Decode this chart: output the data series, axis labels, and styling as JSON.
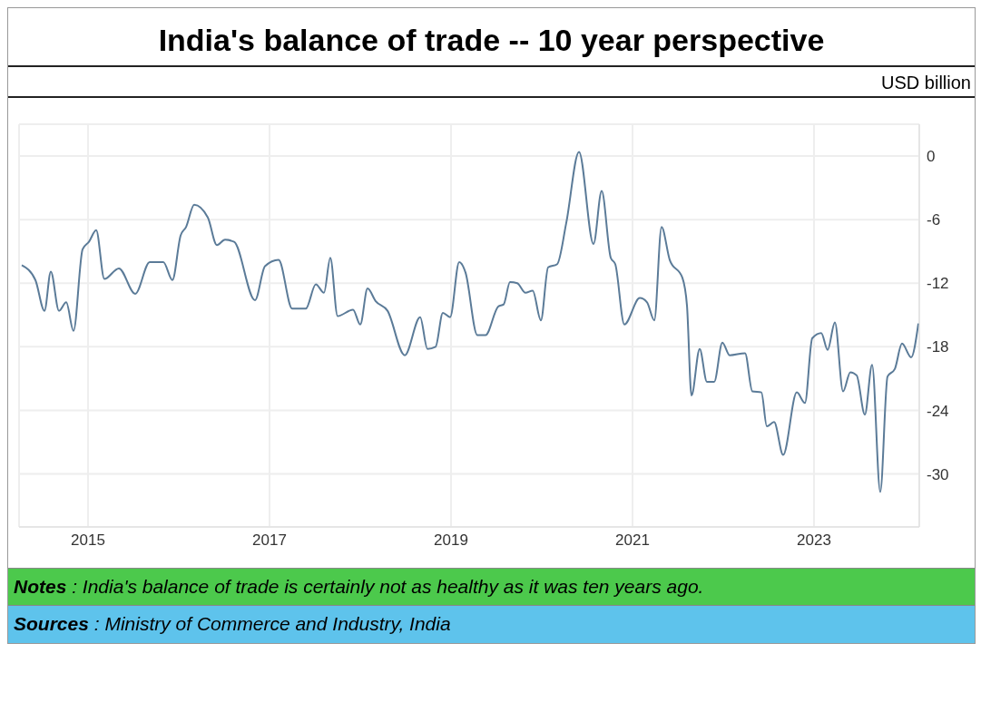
{
  "chart_data": {
    "type": "line",
    "title": "India's balance of trade -- 10 year perspective",
    "ylabel": "USD billion",
    "annotations": [
      "Notes : India's balance of trade is certainly not as healthy as it was ten years ago.",
      "Sources : Ministry of Commerce and Industry, India"
    ],
    "x": [
      2014.27,
      2014.42,
      2014.52,
      2014.59,
      2014.68,
      2014.76,
      2014.84,
      2014.94,
      2015.01,
      2015.09,
      2015.18,
      2015.34,
      2015.52,
      2015.68,
      2015.83,
      2015.93,
      2016.02,
      2016.08,
      2016.17,
      2016.32,
      2016.42,
      2016.51,
      2016.61,
      2016.84,
      2016.95,
      2017.1,
      2017.25,
      2017.4,
      2017.51,
      2017.6,
      2017.67,
      2017.75,
      2017.92,
      2018.0,
      2018.08,
      2018.17,
      2018.3,
      2018.49,
      2018.66,
      2018.74,
      2018.83,
      2018.91,
      2018.99,
      2019.09,
      2019.16,
      2019.29,
      2019.38,
      2019.52,
      2019.58,
      2019.65,
      2019.73,
      2019.82,
      2019.9,
      2019.99,
      2020.07,
      2020.17,
      2020.27,
      2020.41,
      2020.57,
      2020.66,
      2020.76,
      2020.81,
      2020.91,
      2021.08,
      2021.16,
      2021.24,
      2021.32,
      2021.41,
      2021.55,
      2021.6,
      2021.65,
      2021.74,
      2021.82,
      2021.9,
      2021.99,
      2022.07,
      2022.24,
      2022.32,
      2022.42,
      2022.48,
      2022.56,
      2022.66,
      2022.81,
      2022.9,
      2022.98,
      2023.08,
      2023.15,
      2023.23,
      2023.32,
      2023.4,
      2023.47,
      2023.56,
      2023.64,
      2023.73,
      2023.81,
      2023.89,
      2023.97,
      2024.07,
      2024.15
    ],
    "series": [
      {
        "color": "#5b7b98",
        "values": [
          -10.3,
          -11.7,
          -14.6,
          -10.9,
          -14.6,
          -13.8,
          -16.5,
          -8.8,
          -8.1,
          -7.0,
          -11.6,
          -10.6,
          -13.0,
          -10.0,
          -10.0,
          -11.7,
          -7.5,
          -6.7,
          -4.6,
          -5.8,
          -8.4,
          -7.9,
          -8.1,
          -13.6,
          -10.4,
          -9.8,
          -14.4,
          -14.4,
          -12.1,
          -12.9,
          -9.6,
          -15.1,
          -14.5,
          -15.9,
          -12.5,
          -13.7,
          -14.6,
          -18.8,
          -15.2,
          -18.2,
          -18.0,
          -14.8,
          -15.2,
          -10.0,
          -11.0,
          -16.9,
          -16.9,
          -14.2,
          -14.0,
          -11.9,
          -12.0,
          -12.9,
          -12.7,
          -15.5,
          -10.5,
          -10.2,
          -6.3,
          0.4,
          -8.3,
          -3.3,
          -9.6,
          -10.2,
          -15.9,
          -13.4,
          -13.8,
          -15.5,
          -6.7,
          -9.8,
          -11.5,
          -14.1,
          -22.6,
          -18.2,
          -21.3,
          -21.3,
          -17.6,
          -18.8,
          -18.6,
          -22.2,
          -22.3,
          -25.5,
          -25.1,
          -28.2,
          -22.3,
          -23.3,
          -17.2,
          -16.7,
          -18.3,
          -15.7,
          -22.2,
          -20.4,
          -20.7,
          -24.4,
          -19.7,
          -31.7,
          -20.8,
          -20.1,
          -17.7,
          -19.0,
          -15.8
        ]
      }
    ],
    "xlim": [
      2014.24,
      2024.16
    ],
    "xticks": [
      2015,
      2017,
      2019,
      2021,
      2023
    ],
    "ylim": [
      -35,
      3
    ],
    "yticks": [
      -30,
      -24,
      -18,
      -12,
      -6,
      0
    ],
    "grid": true
  }
}
